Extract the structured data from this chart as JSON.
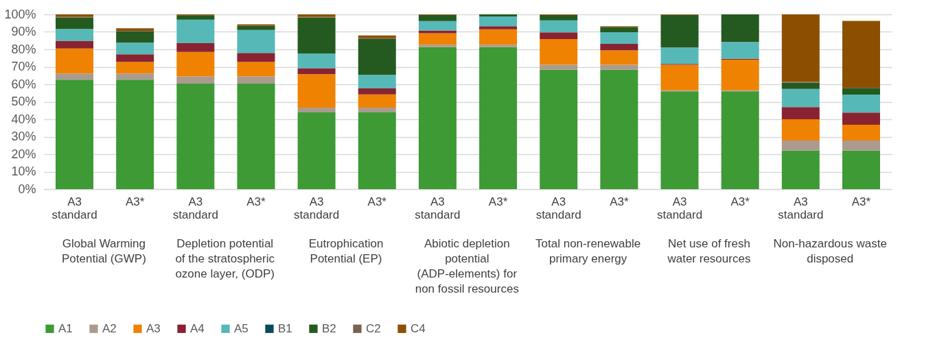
{
  "chart_data": {
    "type": "bar",
    "stacked": true,
    "categories": [
      "A3 standard",
      "A3*",
      "A3 standard",
      "A3*",
      "A3 standard",
      "A3*",
      "A3 standard",
      "A3*",
      "A3 standard",
      "A3*",
      "A3 standard",
      "A3*",
      "A3 standard",
      "A3*"
    ],
    "annotations": [
      "Global Warming Potential (GWP)",
      "Depletion potential of the stratospheric ozone layer,  (ODP)",
      "Eutrophication Potential (EP)",
      "Abiotic depletion potential (ADP-elements) for non fossil resources",
      "Total non-renewable primary energy",
      "Net use of fresh water resources",
      "Non-hazardous waste disposed"
    ],
    "series": [
      {
        "name": "A1",
        "color": "#3d9a35",
        "values": [
          62.6,
          62.6,
          60.4,
          60.4,
          43.9,
          43.9,
          81.3,
          81.3,
          68.3,
          68.3,
          56.0,
          56.0,
          22.1,
          22.1
        ]
      },
      {
        "name": "A2",
        "color": "#ab9b8e",
        "values": [
          3.6,
          3.6,
          4.1,
          4.1,
          2.8,
          2.8,
          1.3,
          1.3,
          2.9,
          2.9,
          0.6,
          0.6,
          5.7,
          5.7
        ]
      },
      {
        "name": "A3",
        "color": "#ef8200",
        "values": [
          14.3,
          6.6,
          14.0,
          8.3,
          19.1,
          7.5,
          6.6,
          8.9,
          14.7,
          8.2,
          14.6,
          17.5,
          12.2,
          9.1
        ]
      },
      {
        "name": "A4",
        "color": "#892332",
        "values": [
          4.4,
          4.4,
          5.0,
          5.1,
          3.4,
          3.4,
          1.6,
          1.7,
          3.8,
          3.7,
          0.5,
          0.5,
          7.0,
          6.9
        ]
      },
      {
        "name": "A5",
        "color": "#56b9b7",
        "values": [
          6.8,
          6.6,
          13.5,
          13.2,
          8.4,
          7.8,
          5.4,
          5.6,
          6.9,
          6.7,
          9.4,
          9.6,
          10.4,
          10.3
        ]
      },
      {
        "name": "B1",
        "color": "#0b4a5e",
        "values": [
          null,
          null,
          null,
          null,
          null,
          null,
          null,
          null,
          null,
          null,
          null,
          null,
          null,
          null
        ]
      },
      {
        "name": "B2",
        "color": "#245a20",
        "values": [
          6.5,
          6.5,
          2.5,
          2.4,
          20.6,
          20.5,
          3.5,
          1.2,
          3.1,
          2.9,
          18.6,
          15.8,
          3.6,
          3.8
        ]
      },
      {
        "name": "C2",
        "color": "#7a6150",
        "values": [
          0.3,
          0.3,
          null,
          null,
          0.3,
          0.5,
          null,
          null,
          null,
          null,
          null,
          null,
          0.4,
          null
        ]
      },
      {
        "name": "C4",
        "color": "#8c4f00",
        "values": [
          1.5,
          1.5,
          0.5,
          0.8,
          1.5,
          1.5,
          0.3,
          null,
          0.3,
          0.5,
          0.3,
          null,
          38.6,
          38.4
        ]
      }
    ],
    "ylim": [
      0,
      100
    ],
    "yticks": [
      {
        "value": 0,
        "label": "0%"
      },
      {
        "value": 10,
        "label": "10%"
      },
      {
        "value": 20,
        "label": "20%"
      },
      {
        "value": 30,
        "label": "30%"
      },
      {
        "value": 40,
        "label": "40%"
      },
      {
        "value": 50,
        "label": "50%"
      },
      {
        "value": 60,
        "label": "60%"
      },
      {
        "value": 70,
        "label": "70%"
      },
      {
        "value": 80,
        "label": "80%"
      },
      {
        "value": 90,
        "label": "90%"
      },
      {
        "value": 100,
        "label": "100%"
      }
    ],
    "grid": "y",
    "legend": "bottom"
  }
}
